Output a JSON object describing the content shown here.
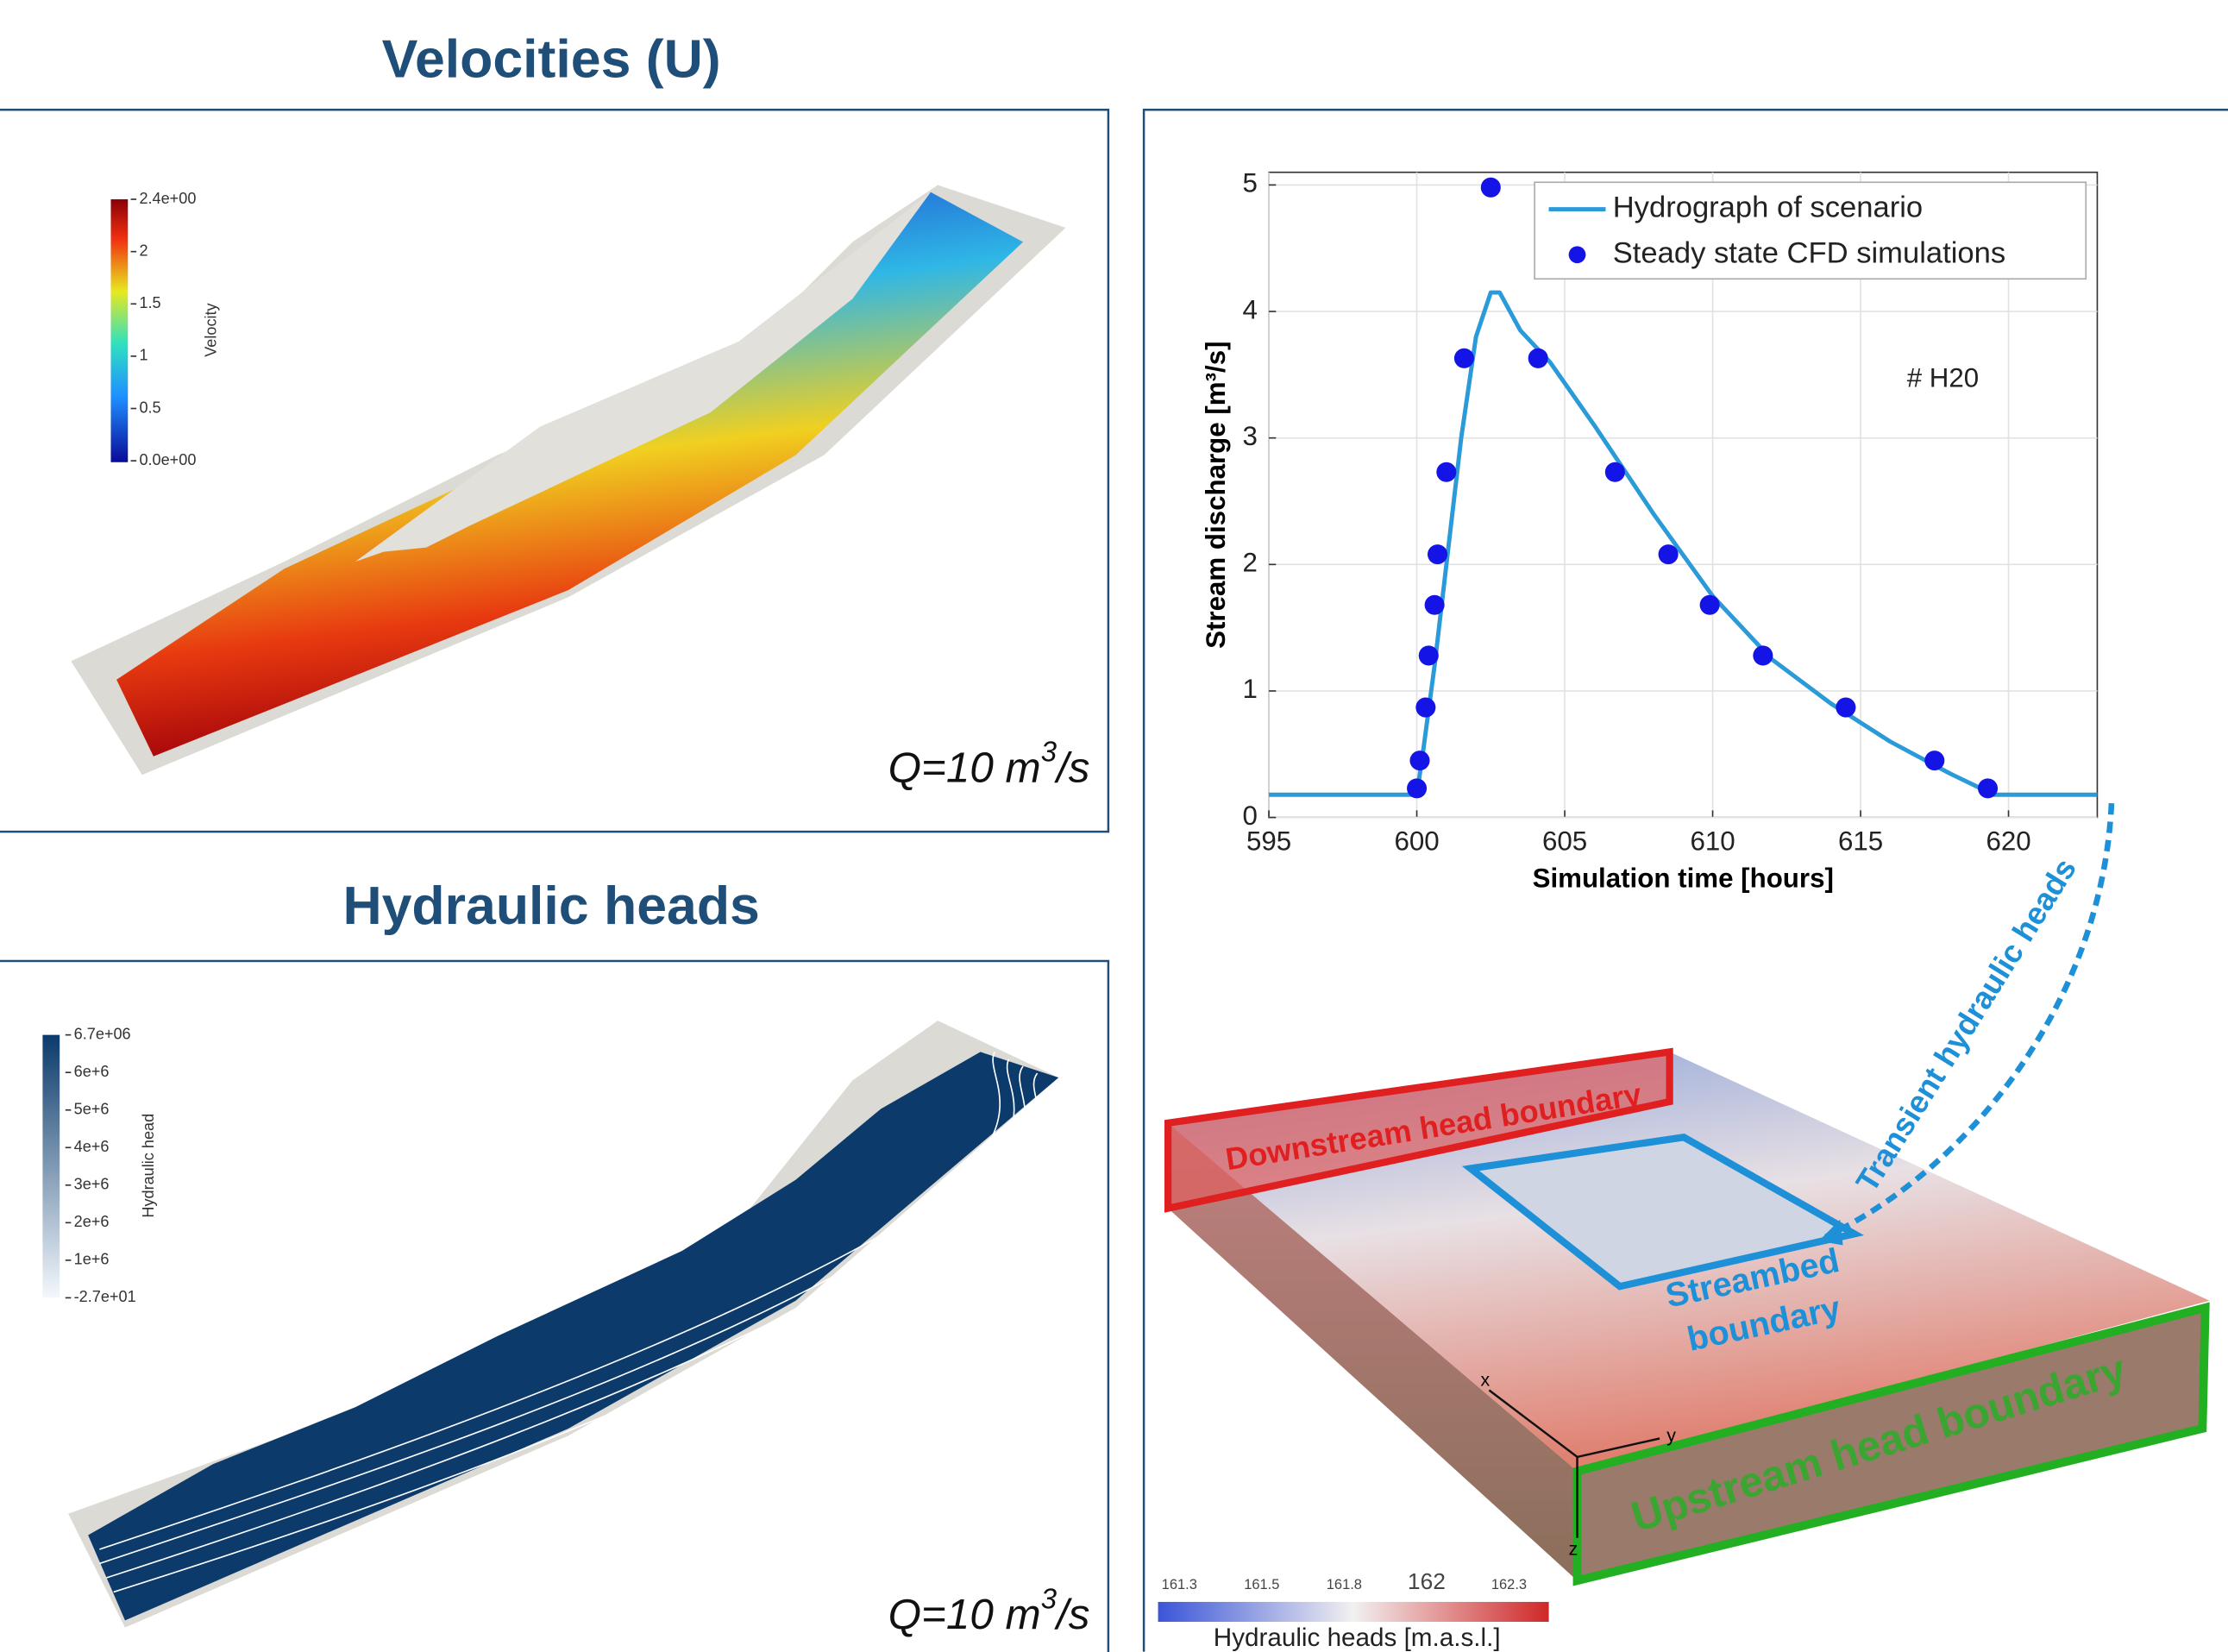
{
  "panels": {
    "velocity": {
      "title": "Velocities (U)",
      "colorbar_title": "Velocity",
      "colorbar_labels": [
        "2.4e+00",
        "2",
        "1.5",
        "1",
        "0.5",
        "0.0e+00"
      ],
      "flow": [
        "Q=10 m",
        "3",
        "/s"
      ]
    },
    "heads": {
      "title": "Hydraulic heads",
      "colorbar_title": "Hydraulic head",
      "colorbar_labels": [
        "6.7e+06",
        "6e+6",
        "5e+6",
        "4e+6",
        "3e+6",
        "2e+6",
        "1e+6",
        "-2.7e+01"
      ],
      "flow": [
        "Q=10 m",
        "3",
        "/s"
      ]
    },
    "model": {
      "downstream": "Downstream head boundary",
      "upstream": "Upstream head boundary",
      "streambed": [
        "Streambed",
        "boundary"
      ],
      "transient": "Transient hydraulic heads",
      "axes": [
        "x",
        "y",
        "z"
      ],
      "colorbar_labels": [
        "161.3",
        "161.5",
        "161.8",
        "162",
        "162.3"
      ],
      "colorbar_title": "Hydraulic heads [m.a.s.l.]"
    }
  },
  "chart_data": {
    "type": "line",
    "x_label": "Simulation time [hours]",
    "y_label": "Stream discharge [m³/s]",
    "annotation": "# H20",
    "xlim": [
      595,
      623
    ],
    "ylim": [
      0,
      5.1
    ],
    "xticks": [
      595,
      600,
      605,
      610,
      615,
      620
    ],
    "yticks": [
      0,
      1,
      2,
      3,
      4,
      5
    ],
    "grid": true,
    "legend": "upper right",
    "series": [
      {
        "name": "Hydrograph of scenario",
        "type": "line",
        "color": "#2a9ad8",
        "x": [
          595,
          600,
          600.2,
          600.6,
          601,
          601.5,
          602,
          602.5,
          602.8,
          603.5,
          604.5,
          606,
          608,
          610,
          612,
          614,
          616,
          618,
          619.5,
          623
        ],
        "values": [
          0.18,
          0.18,
          0.5,
          1.2,
          2,
          3,
          3.8,
          4.15,
          4.15,
          3.85,
          3.6,
          3.1,
          2.4,
          1.75,
          1.25,
          0.9,
          0.6,
          0.35,
          0.18,
          0.18
        ]
      },
      {
        "name": "Steady state CFD simulations",
        "type": "scatter",
        "color": "#1414e6",
        "x": [
          600,
          600.1,
          600.3,
          600.4,
          600.6,
          600.7,
          601,
          601.6,
          602.5,
          604.1,
          606.7,
          608.5,
          609.9,
          611.7,
          614.5,
          617.5,
          619.3
        ],
        "values": [
          0.23,
          0.45,
          0.87,
          1.28,
          1.68,
          2.08,
          2.73,
          3.63,
          4.98,
          3.63,
          2.73,
          2.08,
          1.68,
          1.28,
          0.87,
          0.45,
          0.23
        ]
      }
    ]
  }
}
